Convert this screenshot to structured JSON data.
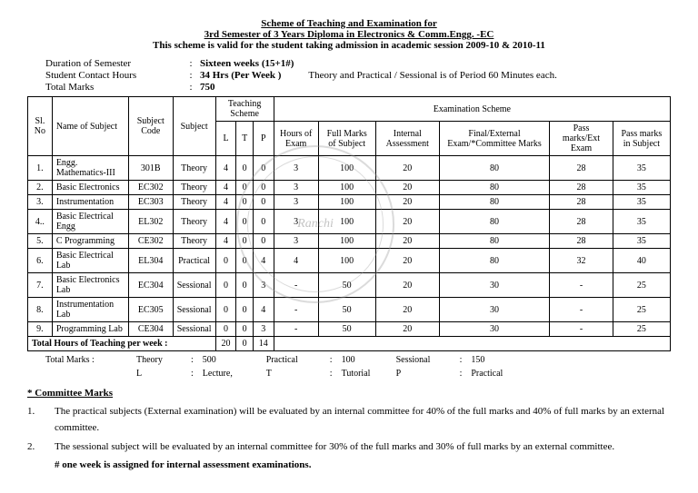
{
  "header": {
    "title1": "Scheme of Teaching and Examination for",
    "title2": "3rd Semester of 3 Years Diploma in Electronics & Comm.Engg. -EC",
    "subtitle": "This scheme is valid for the student taking admission in academic session 2009-10 & 2010-11"
  },
  "meta": {
    "duration_label": "Duration of Semester",
    "duration_value": "Sixteen weeks (15+1#)",
    "contact_label": "Student Contact Hours",
    "contact_value": "34 Hrs  (Per Week )",
    "contact_extra": "Theory and Practical / Sessional is of Period 60 Minutes each.",
    "totalmarks_label": "Total Marks",
    "totalmarks_value": "750"
  },
  "table": {
    "headers": {
      "sl": "Sl. No",
      "name": "Name of  Subject",
      "code": "Subject Code",
      "subject": "Subject",
      "teaching": "Teaching Scheme",
      "l": "L",
      "t": "T",
      "p": "P",
      "exam": "Examination Scheme",
      "hours": "Hours of Exam",
      "full": "Full Marks of Subject",
      "internal": "Internal Assessment",
      "final": "Final/External Exam/*Committee Marks",
      "passext": "Pass marks/Ext Exam",
      "passsub": "Pass marks in Subject"
    },
    "rows": [
      {
        "sl": "1.",
        "name": "Engg. Mathematics-III",
        "code": "301B",
        "subject": "Theory",
        "l": "4",
        "t": "0",
        "p": "0",
        "hours": "3",
        "full": "100",
        "internal": "20",
        "final": "80",
        "passext": "28",
        "passsub": "35"
      },
      {
        "sl": "2.",
        "name": "Basic Electronics",
        "code": "EC302",
        "subject": "Theory",
        "l": "4",
        "t": "0",
        "p": "0",
        "hours": "3",
        "full": "100",
        "internal": "20",
        "final": "80",
        "passext": "28",
        "passsub": "35"
      },
      {
        "sl": "3.",
        "name": "Instrumentation",
        "code": "EC303",
        "subject": "Theory",
        "l": "4",
        "t": "0",
        "p": "0",
        "hours": "3",
        "full": "100",
        "internal": "20",
        "final": "80",
        "passext": "28",
        "passsub": "35"
      },
      {
        "sl": "4..",
        "name": "Basic Electrical Engg",
        "code": "EL302",
        "subject": "Theory",
        "l": "4",
        "t": "0",
        "p": "0",
        "hours": "3",
        "full": "100",
        "internal": "20",
        "final": "80",
        "passext": "28",
        "passsub": "35"
      },
      {
        "sl": "5.",
        "name": "C Programming",
        "code": "CE302",
        "subject": "Theory",
        "l": "4",
        "t": "0",
        "p": "0",
        "hours": "3",
        "full": "100",
        "internal": "20",
        "final": "80",
        "passext": "28",
        "passsub": "35"
      },
      {
        "sl": "6.",
        "name": "Basic Electrical Lab",
        "code": "EL304",
        "subject": "Practical",
        "l": "0",
        "t": "0",
        "p": "4",
        "hours": "4",
        "full": "100",
        "internal": "20",
        "final": "80",
        "passext": "32",
        "passsub": "40"
      },
      {
        "sl": "7.",
        "name": "Basic Electronics Lab",
        "code": "EC304",
        "subject": "Sessional",
        "l": "0",
        "t": "0",
        "p": "3",
        "hours": "-",
        "full": "50",
        "internal": "20",
        "final": "30",
        "passext": "-",
        "passsub": "25"
      },
      {
        "sl": "8.",
        "name": "Instrumentation Lab",
        "code": "EC305",
        "subject": "Sessional",
        "l": "0",
        "t": "0",
        "p": "4",
        "hours": "-",
        "full": "50",
        "internal": "20",
        "final": "30",
        "passext": "-",
        "passsub": "25"
      },
      {
        "sl": "9.",
        "name": "Programming Lab",
        "code": "CE304",
        "subject": "Sessional",
        "l": "0",
        "t": "0",
        "p": "3",
        "hours": "-",
        "full": "50",
        "internal": "20",
        "final": "30",
        "passext": "-",
        "passsub": "25"
      }
    ],
    "footer": {
      "label": "Total Hours of Teaching per week :",
      "l": "20",
      "t": "0",
      "p": "14"
    }
  },
  "totals": {
    "label": "Total Marks :",
    "theory_k": "Theory",
    "theory_v": "500",
    "practical_k": "Practical",
    "practical_v": "100",
    "sessional_k": "Sessional",
    "sessional_v": "150",
    "l_k": "L",
    "l_v": "Lecture,",
    "t_k": "T",
    "t_v": "Tutorial",
    "p_k": "P",
    "p_v": "Practical"
  },
  "committee": {
    "heading": "* Committee Marks",
    "n1_num": "1.",
    "n1": "The practical subjects (External examination) will be evaluated by an internal committee for  40% of the full marks and 40% of full marks by an external committee.",
    "n2_num": "2.",
    "n2": "The sessional subject will be evaluated by an internal committee for  30% of the full marks and 30% of full marks by an external committee.",
    "hash": "# one week is assigned for internal  assessment examinations."
  },
  "stamp_text": "Ranchi"
}
